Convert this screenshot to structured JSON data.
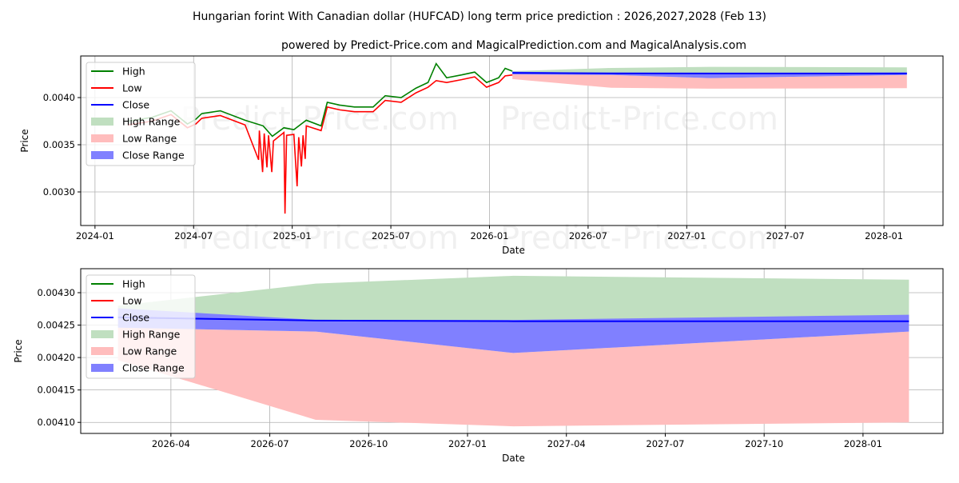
{
  "chart_data": [
    {
      "type": "line",
      "title": "Hungarian forint With Canadian dollar (HUFCAD) long term price prediction : 2026,2027,2028 (Feb 13)",
      "subtitle": "powered by Predict-Price.com and MagicalPrediction.com and MagicalAnalysis.com",
      "xlabel": "Date",
      "ylabel": "Price",
      "xlim": [
        "2023-12-05",
        "2028-04-19"
      ],
      "ylim": [
        0.002644,
        0.004441
      ],
      "grid": true,
      "legend_position": "top-left",
      "xticks": [
        {
          "date": "2024-01-01",
          "label": "2024-01"
        },
        {
          "date": "2024-07-01",
          "label": "2024-07"
        },
        {
          "date": "2025-01-01",
          "label": "2025-01"
        },
        {
          "date": "2025-07-01",
          "label": "2025-07"
        },
        {
          "date": "2026-01-01",
          "label": "2026-01"
        },
        {
          "date": "2026-07-01",
          "label": "2026-07"
        },
        {
          "date": "2027-01-01",
          "label": "2027-01"
        },
        {
          "date": "2027-07-01",
          "label": "2027-07"
        },
        {
          "date": "2028-01-01",
          "label": "2028-01"
        }
      ],
      "yticks": [
        {
          "value": 0.003,
          "label": "0.0030"
        },
        {
          "value": 0.0035,
          "label": "0.0035"
        },
        {
          "value": 0.004,
          "label": "0.0040"
        }
      ],
      "history": {
        "high": [
          [
            "2024-03-01",
            0.00375
          ],
          [
            "2024-04-15",
            0.00379
          ],
          [
            "2024-05-20",
            0.00386
          ],
          [
            "2024-06-20",
            0.00372
          ],
          [
            "2024-07-05",
            0.00377
          ],
          [
            "2024-07-16",
            0.00383
          ],
          [
            "2024-08-20",
            0.00386
          ],
          [
            "2024-10-05",
            0.00376
          ],
          [
            "2024-11-08",
            0.0037
          ],
          [
            "2024-11-25",
            0.00359
          ],
          [
            "2024-12-16",
            0.00368
          ],
          [
            "2025-01-04",
            0.00366
          ],
          [
            "2025-01-27",
            0.00376
          ],
          [
            "2025-02-24",
            0.0037
          ],
          [
            "2025-03-05",
            0.00395
          ],
          [
            "2025-03-28",
            0.00392
          ],
          [
            "2025-04-25",
            0.0039
          ],
          [
            "2025-05-29",
            0.0039
          ],
          [
            "2025-06-21",
            0.00402
          ],
          [
            "2025-07-20",
            0.004
          ],
          [
            "2025-08-17",
            0.0041
          ],
          [
            "2025-09-09",
            0.00416
          ],
          [
            "2025-09-24",
            0.00436
          ],
          [
            "2025-10-13",
            0.00421
          ],
          [
            "2025-11-10",
            0.00424
          ],
          [
            "2025-12-04",
            0.00427
          ],
          [
            "2025-12-26",
            0.00416
          ],
          [
            "2026-01-18",
            0.00421
          ],
          [
            "2026-01-30",
            0.00431
          ],
          [
            "2026-02-13",
            0.00428
          ]
        ],
        "low": [
          [
            "2024-03-01",
            0.00371
          ],
          [
            "2024-04-15",
            0.00375
          ],
          [
            "2024-05-20",
            0.00382
          ],
          [
            "2024-06-20",
            0.00368
          ],
          [
            "2024-07-05",
            0.00372
          ],
          [
            "2024-07-16",
            0.00378
          ],
          [
            "2024-08-20",
            0.00381
          ],
          [
            "2024-10-05",
            0.00371
          ],
          [
            "2024-10-30",
            0.00334
          ],
          [
            "2024-11-01",
            0.00365
          ],
          [
            "2024-11-07",
            0.00321
          ],
          [
            "2024-11-10",
            0.00362
          ],
          [
            "2024-11-15",
            0.00326
          ],
          [
            "2024-11-18",
            0.0036
          ],
          [
            "2024-11-24",
            0.00321
          ],
          [
            "2024-11-27",
            0.00354
          ],
          [
            "2024-12-16",
            0.00363
          ],
          [
            "2024-12-18",
            0.00277
          ],
          [
            "2024-12-21",
            0.0036
          ],
          [
            "2025-01-04",
            0.00361
          ],
          [
            "2025-01-10",
            0.00306
          ],
          [
            "2025-01-13",
            0.00358
          ],
          [
            "2025-01-18",
            0.00327
          ],
          [
            "2025-01-21",
            0.0036
          ],
          [
            "2025-01-25",
            0.00335
          ],
          [
            "2025-01-27",
            0.0037
          ],
          [
            "2025-02-24",
            0.00365
          ],
          [
            "2025-03-05",
            0.0039
          ],
          [
            "2025-03-28",
            0.00387
          ],
          [
            "2025-04-25",
            0.00385
          ],
          [
            "2025-05-29",
            0.00385
          ],
          [
            "2025-06-21",
            0.00397
          ],
          [
            "2025-07-20",
            0.00395
          ],
          [
            "2025-08-17",
            0.00405
          ],
          [
            "2025-09-09",
            0.00411
          ],
          [
            "2025-09-24",
            0.00418
          ],
          [
            "2025-10-13",
            0.00416
          ],
          [
            "2025-11-10",
            0.00419
          ],
          [
            "2025-12-04",
            0.00422
          ],
          [
            "2025-12-26",
            0.00411
          ],
          [
            "2026-01-18",
            0.00416
          ],
          [
            "2026-01-30",
            0.00423
          ],
          [
            "2026-02-13",
            0.00424
          ]
        ]
      }
    },
    {
      "type": "area",
      "xlabel": "Date",
      "ylabel": "Price",
      "xlim": [
        "2026-01-09",
        "2028-03-14"
      ],
      "ylim": [
        0.004083,
        0.004337
      ],
      "grid": true,
      "legend_position": "top-left",
      "xticks": [
        {
          "date": "2026-04-01",
          "label": "2026-04"
        },
        {
          "date": "2026-07-01",
          "label": "2026-07"
        },
        {
          "date": "2026-10-01",
          "label": "2026-10"
        },
        {
          "date": "2027-01-01",
          "label": "2027-01"
        },
        {
          "date": "2027-04-01",
          "label": "2027-04"
        },
        {
          "date": "2027-07-01",
          "label": "2027-07"
        },
        {
          "date": "2027-10-01",
          "label": "2027-10"
        },
        {
          "date": "2028-01-01",
          "label": "2028-01"
        }
      ],
      "yticks": [
        {
          "value": 0.0041,
          "label": "0.00410"
        },
        {
          "value": 0.00415,
          "label": "0.00415"
        },
        {
          "value": 0.0042,
          "label": "0.00420"
        },
        {
          "value": 0.00425,
          "label": "0.00425"
        },
        {
          "value": 0.0043,
          "label": "0.00430"
        }
      ]
    }
  ],
  "forecast": {
    "dates": [
      "2026-02-13",
      "2026-08-13",
      "2027-02-13",
      "2028-02-13"
    ],
    "close": [
      0.004262,
      0.004257,
      0.004256,
      0.004256
    ],
    "close_range_high": [
      0.004276,
      0.004258,
      0.004258,
      0.004266
    ],
    "close_range_low": [
      0.004246,
      0.00424,
      0.004207,
      0.00424
    ],
    "high_range_high": [
      0.00428,
      0.004314,
      0.004326,
      0.00432
    ],
    "high_range_low": [
      0.004262,
      0.004257,
      0.004256,
      0.004256
    ],
    "low_range_high": [
      0.004246,
      0.00424,
      0.004207,
      0.00424
    ],
    "low_range_low": [
      0.004196,
      0.004104,
      0.004094,
      0.0041
    ]
  },
  "legend": [
    "High",
    "Low",
    "Close",
    "High Range",
    "Low Range",
    "Close Range"
  ],
  "colors": {
    "high": "#008000",
    "low": "#ff0000",
    "close": "#0000ff",
    "high_range": "#c0dfc0",
    "low_range": "#ffbdbd",
    "close_range": "#8080ff",
    "grid": "#b0b0b0"
  },
  "watermark": "Predict-Price.com"
}
